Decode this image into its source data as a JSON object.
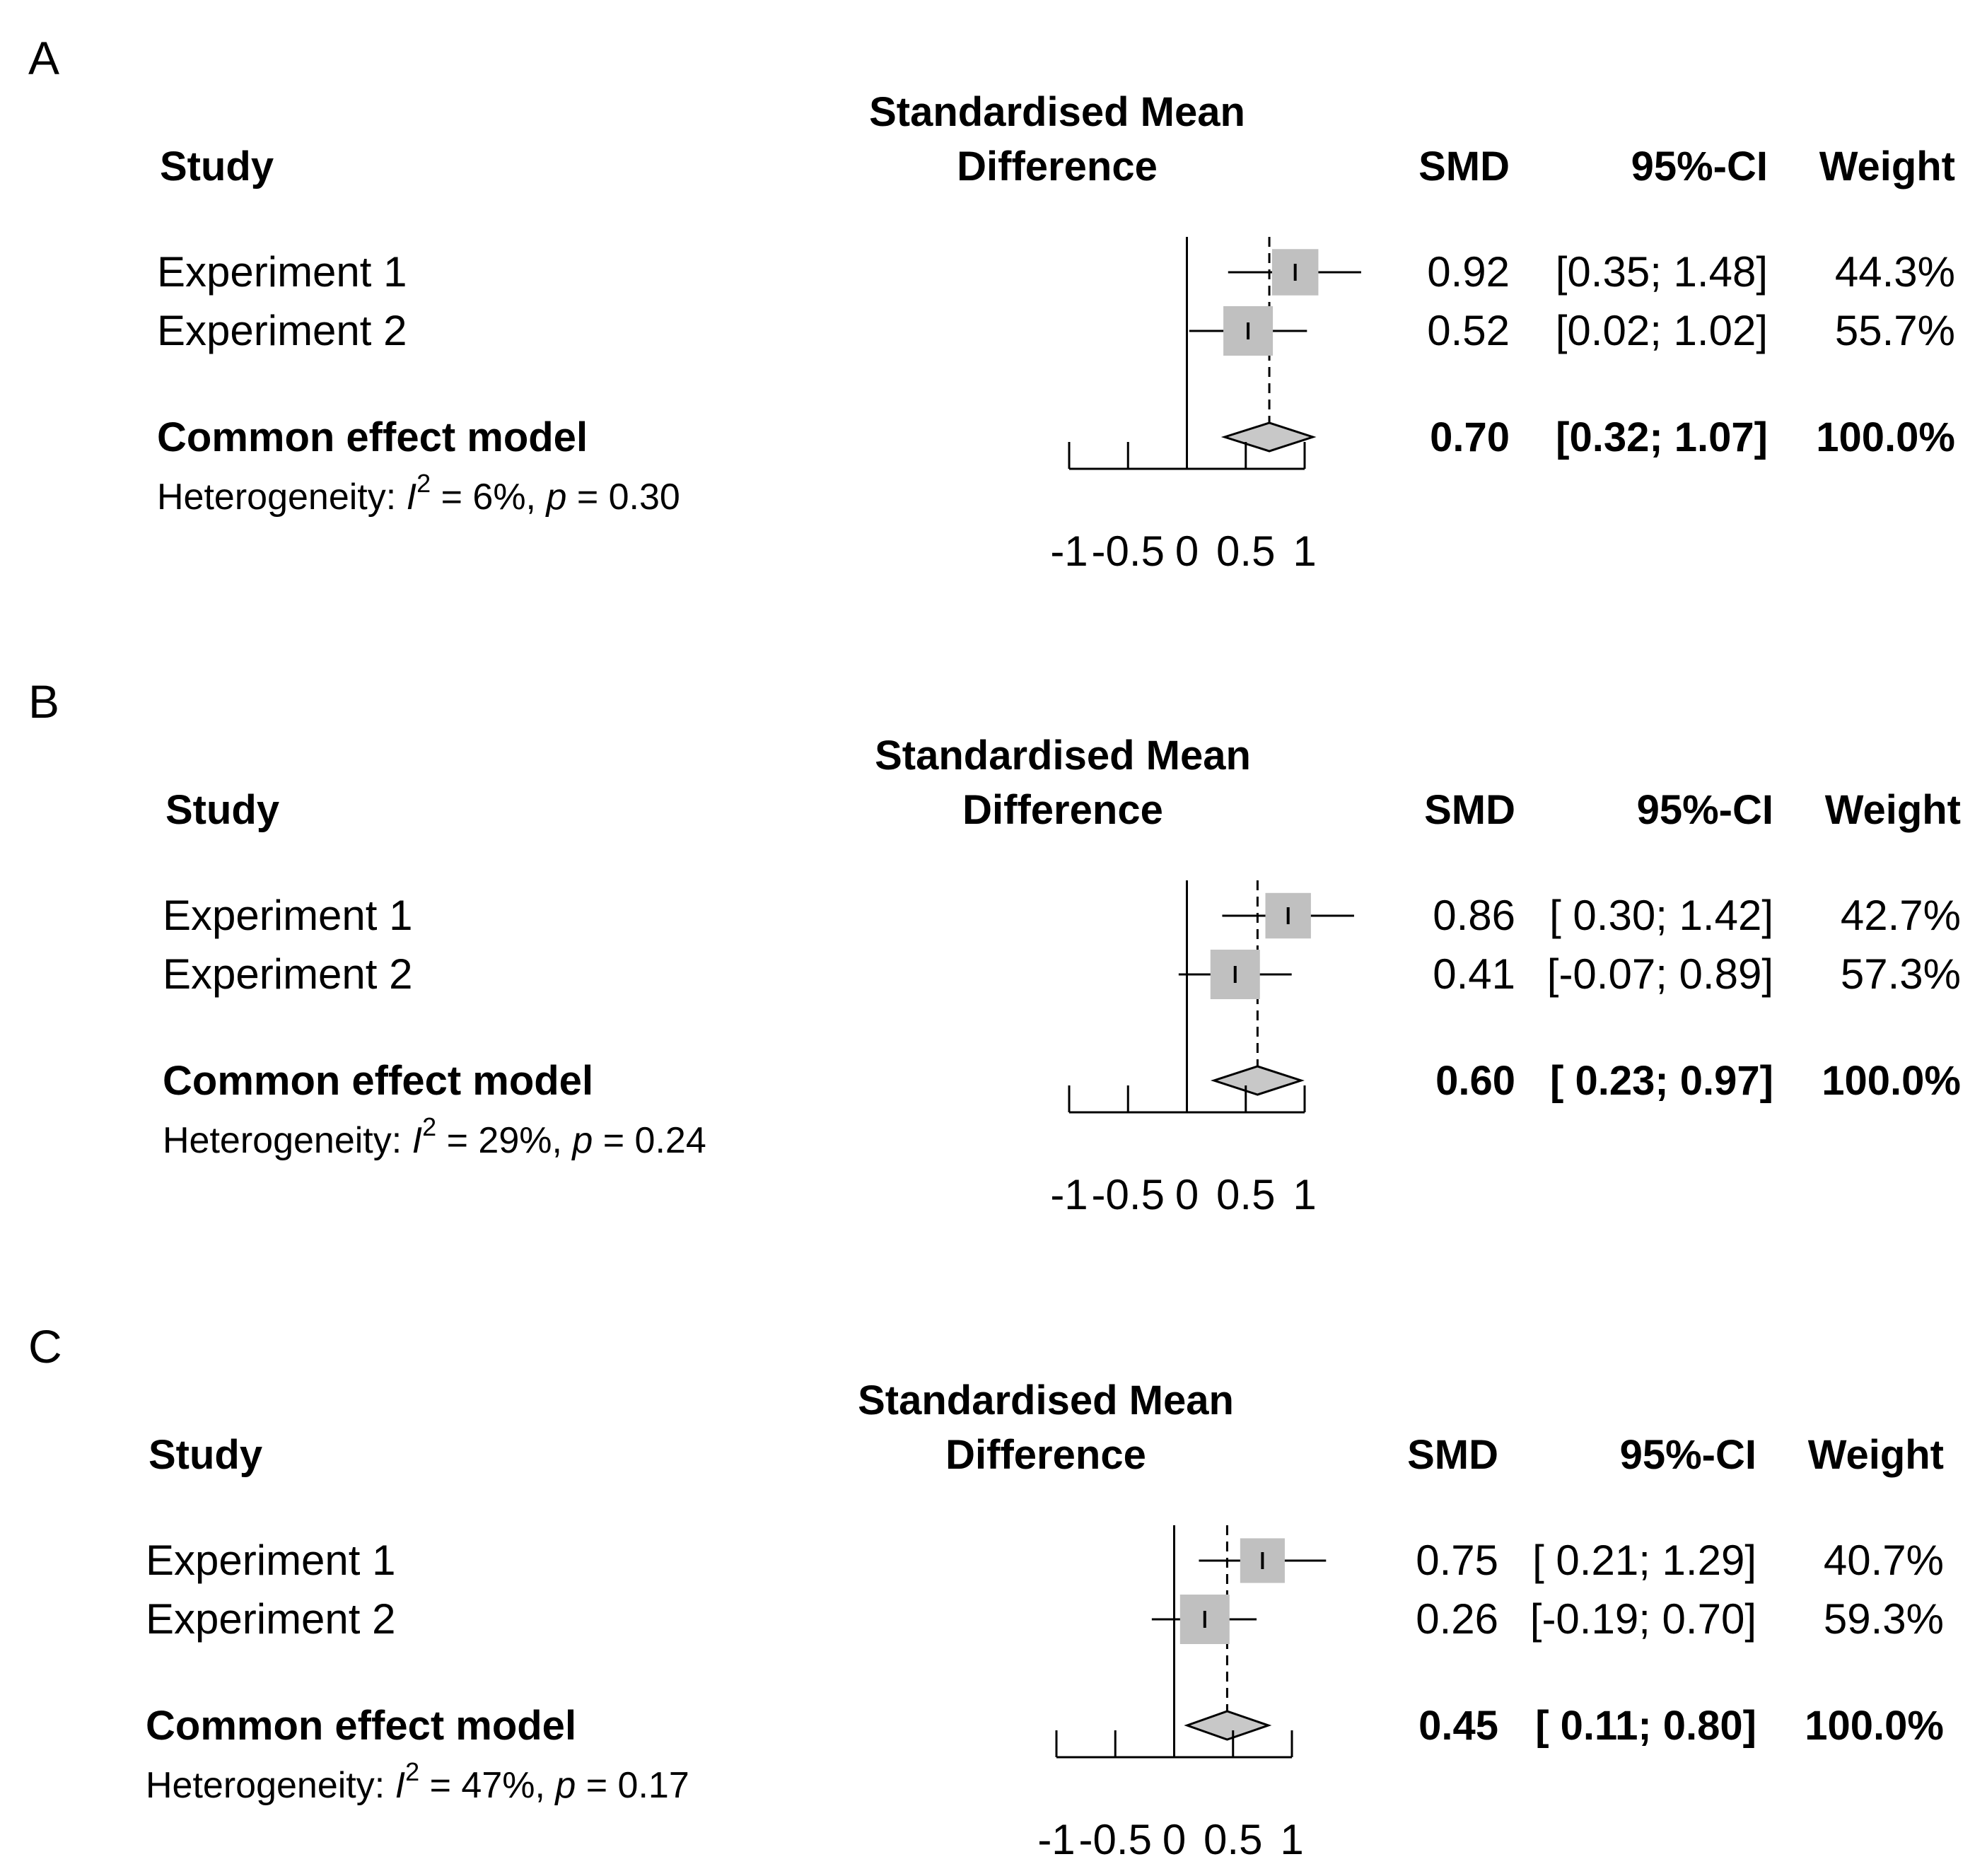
{
  "chart_data": [
    {
      "type": "forest",
      "panel": "A",
      "title": "Standardised Mean",
      "title2": "Difference",
      "xlabel": "",
      "ylabel": "",
      "xlim": [
        -1,
        1
      ],
      "xticks": [
        -1,
        -0.5,
        0,
        0.5,
        1
      ],
      "xtick_labels": [
        "-1",
        "-0.5",
        "0",
        "0.5",
        "1"
      ],
      "headers": {
        "study": "Study",
        "smd": "SMD",
        "ci": "95%-CI",
        "weight": "Weight"
      },
      "studies": [
        {
          "name": "Experiment 1",
          "smd": 0.92,
          "lower": 0.35,
          "upper": 1.48,
          "weight": 44.3,
          "smd_text": "0.92",
          "ci_text": "[0.35; 1.48]",
          "weight_text": "44.3%"
        },
        {
          "name": "Experiment 2",
          "smd": 0.52,
          "lower": 0.02,
          "upper": 1.02,
          "weight": 55.7,
          "smd_text": "0.52",
          "ci_text": "[0.02; 1.02]",
          "weight_text": "55.7%"
        }
      ],
      "pooled": {
        "name": "Common effect model",
        "smd": 0.7,
        "lower": 0.32,
        "upper": 1.07,
        "smd_text": "0.70",
        "ci_text": "[0.32; 1.07]",
        "weight_text": "100.0%"
      },
      "heterogeneity": {
        "prefix": "Heterogeneity: ",
        "I": "I",
        "sup": "2",
        "i2_text": " = 6%, ",
        "p": "p",
        "p_text": " = 0.30"
      }
    },
    {
      "type": "forest",
      "panel": "B",
      "title": "Standardised Mean",
      "title2": "Difference",
      "xlabel": "",
      "ylabel": "",
      "xlim": [
        -1,
        1
      ],
      "xticks": [
        -1,
        -0.5,
        0,
        0.5,
        1
      ],
      "xtick_labels": [
        "-1",
        "-0.5",
        "0",
        "0.5",
        "1"
      ],
      "headers": {
        "study": "Study",
        "smd": "SMD",
        "ci": "95%-CI",
        "weight": "Weight"
      },
      "studies": [
        {
          "name": "Experiment 1",
          "smd": 0.86,
          "lower": 0.3,
          "upper": 1.42,
          "weight": 42.7,
          "smd_text": "0.86",
          "ci_text": "[ 0.30; 1.42]",
          "weight_text": "42.7%"
        },
        {
          "name": "Experiment 2",
          "smd": 0.41,
          "lower": -0.07,
          "upper": 0.89,
          "weight": 57.3,
          "smd_text": "0.41",
          "ci_text": "[-0.07; 0.89]",
          "weight_text": "57.3%"
        }
      ],
      "pooled": {
        "name": "Common effect model",
        "smd": 0.6,
        "lower": 0.23,
        "upper": 0.97,
        "smd_text": "0.60",
        "ci_text": "[ 0.23; 0.97]",
        "weight_text": "100.0%"
      },
      "heterogeneity": {
        "prefix": "Heterogeneity: ",
        "I": "I",
        "sup": "2",
        "i2_text": " = 29%, ",
        "p": "p",
        "p_text": " = 0.24"
      }
    },
    {
      "type": "forest",
      "panel": "C",
      "title": "Standardised Mean",
      "title2": "Difference",
      "xlabel": "",
      "ylabel": "",
      "xlim": [
        -1,
        1
      ],
      "xticks": [
        -1,
        -0.5,
        0,
        0.5,
        1
      ],
      "xtick_labels": [
        "-1",
        "-0.5",
        "0",
        "0.5",
        "1"
      ],
      "headers": {
        "study": "Study",
        "smd": "SMD",
        "ci": "95%-CI",
        "weight": "Weight"
      },
      "studies": [
        {
          "name": "Experiment 1",
          "smd": 0.75,
          "lower": 0.21,
          "upper": 1.29,
          "weight": 40.7,
          "smd_text": "0.75",
          "ci_text": "[ 0.21; 1.29]",
          "weight_text": "40.7%"
        },
        {
          "name": "Experiment 2",
          "smd": 0.26,
          "lower": -0.19,
          "upper": 0.7,
          "weight": 59.3,
          "smd_text": "0.26",
          "ci_text": "[-0.19; 0.70]",
          "weight_text": "59.3%"
        }
      ],
      "pooled": {
        "name": "Common effect model",
        "smd": 0.45,
        "lower": 0.11,
        "upper": 0.8,
        "smd_text": "0.45",
        "ci_text": "[ 0.11; 0.80]",
        "weight_text": "100.0%"
      },
      "heterogeneity": {
        "prefix": "Heterogeneity: ",
        "I": "I",
        "sup": "2",
        "i2_text": " = 47%, ",
        "p": "p",
        "p_text": " = 0.17"
      }
    }
  ]
}
